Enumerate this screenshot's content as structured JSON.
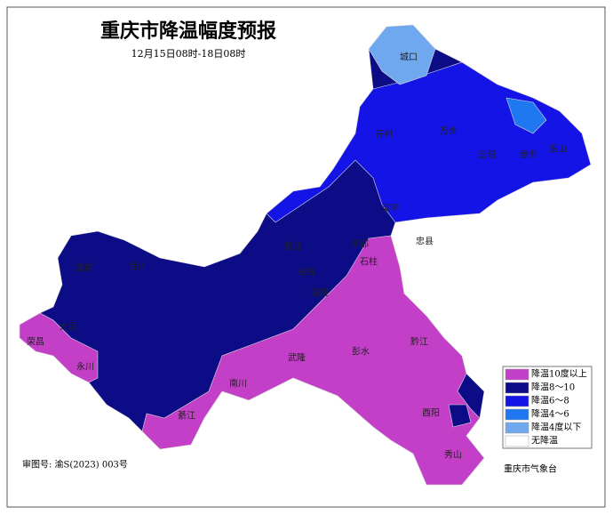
{
  "title": "重庆市降温幅度预报",
  "subtitle": "12月15日08时-18日08时",
  "legend": [
    {
      "label": "降温10度以上",
      "color": "#c33fc8"
    },
    {
      "label": "降温8～10",
      "color": "#0c0c86"
    },
    {
      "label": "降温6～8",
      "color": "#1414e6"
    },
    {
      "label": "降温4～6",
      "color": "#1f78f0"
    },
    {
      "label": "降温4度以下",
      "color": "#6fa8ee"
    },
    {
      "label": "无降温",
      "color": "#ffffff"
    }
  ],
  "places": [
    "城口",
    "开州",
    "云阳",
    "奉节",
    "巫山",
    "万州",
    "梁平",
    "忠县",
    "垫江",
    "长寿",
    "涪陵",
    "丰都",
    "石柱",
    "彭水",
    "黔江",
    "酉阳",
    "秀山",
    "武隆",
    "南川",
    "綦江",
    "永川",
    "荣昌",
    "大足",
    "合川",
    "潼南"
  ],
  "approval": "审图号: 渝S(2023) 003号",
  "agency": "重庆市气象台"
}
